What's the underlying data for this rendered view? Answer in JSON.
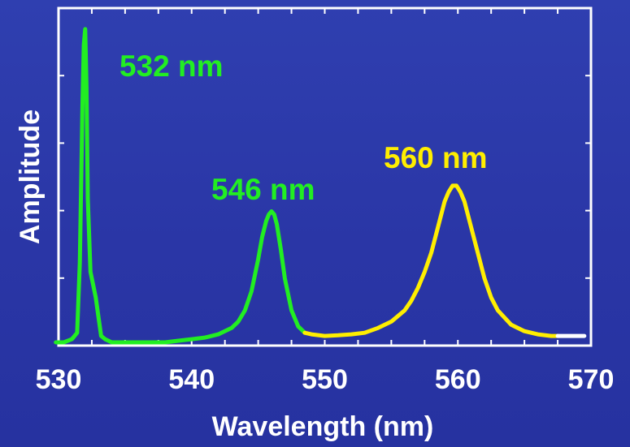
{
  "chart_data": {
    "type": "line",
    "title": "",
    "xlabel": "Wavelength (nm)",
    "ylabel": "Amplitude",
    "xlim": [
      530,
      570
    ],
    "ylim": [
      0,
      1
    ],
    "xticks": [
      530,
      540,
      550,
      560,
      570
    ],
    "xtick_labels": [
      "530",
      "540",
      "550",
      "560",
      "570"
    ],
    "grid": false,
    "background_color": "#2d3aac",
    "series": [
      {
        "color": "#22ee22",
        "x": [
          529.8,
          530.4,
          531.0,
          531.4,
          531.6,
          531.8,
          531.9,
          532.0,
          532.1,
          532.2,
          532.4,
          532.6,
          532.8,
          533.0,
          533.2,
          533.5,
          534.0,
          535.0,
          536.0,
          537.0,
          538.0,
          539.0,
          540.0,
          541.0,
          542.0,
          543.0,
          543.5,
          544.0,
          544.5,
          545.0,
          545.3,
          545.6,
          545.8,
          546.0,
          546.2,
          546.4,
          546.7,
          547.0,
          547.5,
          548.0,
          548.5
        ],
        "y": [
          0.0,
          0.0,
          0.01,
          0.03,
          0.25,
          0.75,
          0.93,
          0.98,
          0.8,
          0.45,
          0.22,
          0.18,
          0.14,
          0.08,
          0.02,
          0.01,
          0.0,
          0.0,
          0.0,
          0.0,
          0.0,
          0.005,
          0.01,
          0.015,
          0.025,
          0.045,
          0.065,
          0.1,
          0.16,
          0.26,
          0.33,
          0.38,
          0.4,
          0.41,
          0.4,
          0.37,
          0.29,
          0.2,
          0.1,
          0.05,
          0.03
        ]
      },
      {
        "color": "#ffee00",
        "x": [
          548.5,
          549.0,
          550.0,
          551.0,
          552.0,
          553.0,
          554.0,
          555.0,
          556.0,
          556.5,
          557.0,
          557.5,
          558.0,
          558.5,
          559.0,
          559.3,
          559.6,
          559.9,
          560.2,
          560.5,
          561.0,
          561.5,
          562.0,
          562.5,
          563.0,
          564.0,
          565.0,
          566.0,
          567.0,
          567.5
        ],
        "y": [
          0.03,
          0.025,
          0.02,
          0.022,
          0.025,
          0.03,
          0.045,
          0.065,
          0.1,
          0.13,
          0.17,
          0.22,
          0.28,
          0.36,
          0.44,
          0.47,
          0.49,
          0.49,
          0.47,
          0.44,
          0.36,
          0.28,
          0.2,
          0.14,
          0.1,
          0.055,
          0.035,
          0.025,
          0.02,
          0.02
        ]
      },
      {
        "color": "#ffffff",
        "x": [
          567.5,
          568.5,
          569.5
        ],
        "y": [
          0.02,
          0.02,
          0.02
        ]
      }
    ],
    "annotations": [
      {
        "text": "532 nm",
        "color": "#22ee22"
      },
      {
        "text": "546 nm",
        "color": "#22ee22"
      },
      {
        "text": "560 nm",
        "color": "#ffee00"
      }
    ]
  }
}
